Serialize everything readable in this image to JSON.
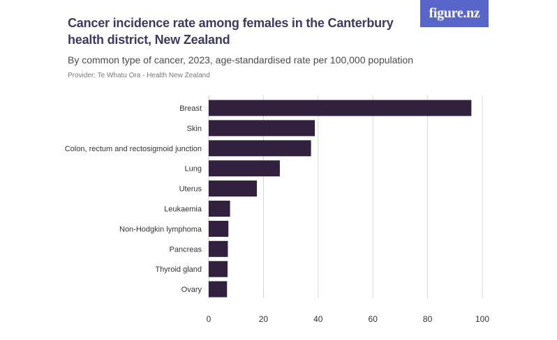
{
  "header": {
    "title": "Cancer incidence rate among females in the Canterbury health district, New Zealand",
    "subtitle": "By common type of cancer, 2023, age-standardised rate per 100,000 population",
    "provider": "Provider: Te Whatu Ora - Health New Zealand",
    "logo": "figure.nz"
  },
  "colors": {
    "bar": "#32203f",
    "title": "#3b3a66",
    "logo_bg": "#5865c9",
    "grid": "#d9d9d9"
  },
  "chart_data": {
    "type": "bar",
    "orientation": "horizontal",
    "categories": [
      "Breast",
      "Skin",
      "Colon, rectum and rectosigmoid junction",
      "Lung",
      "Uterus",
      "Leukaemia",
      "Non-Hodgkin lymphoma",
      "Pancreas",
      "Thyroid gland",
      "Ovary"
    ],
    "values": [
      96.0,
      38.8,
      37.4,
      26.0,
      17.6,
      7.8,
      7.2,
      7.0,
      6.9,
      6.7
    ],
    "xlim": [
      0,
      100
    ],
    "xticks": [
      0,
      20,
      40,
      60,
      80,
      100
    ],
    "grid": true,
    "legend": "none"
  }
}
